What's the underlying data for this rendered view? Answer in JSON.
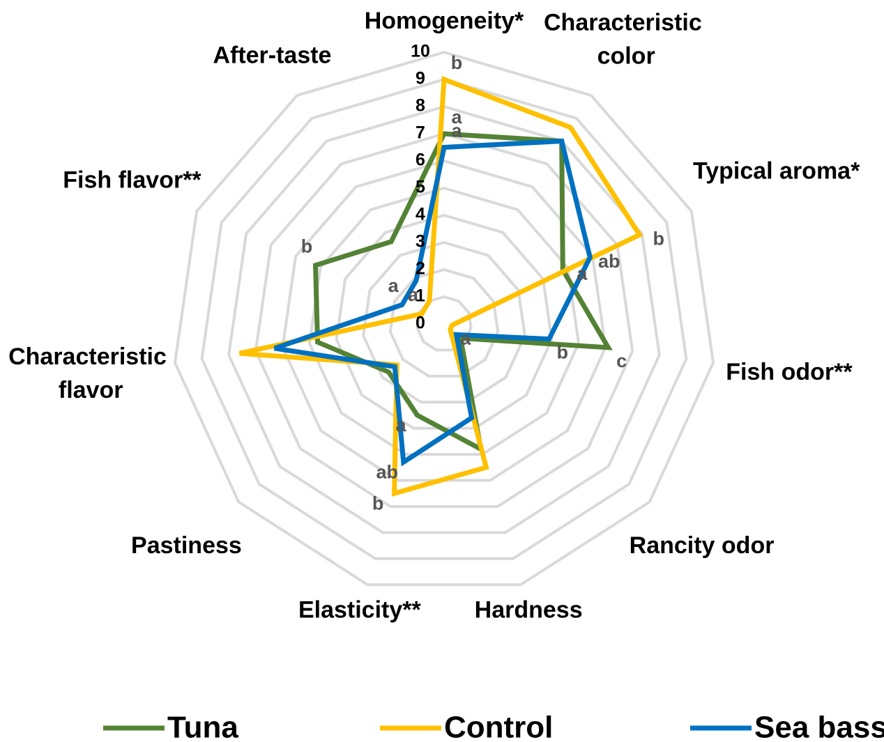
{
  "chart_data": {
    "type": "radar",
    "categories": [
      "Homogeneity*",
      "Characteristic color",
      "Typical aroma*",
      "Fish odor**",
      "Rancity odor",
      "Hardness",
      "Elasticity**",
      "Pastiness",
      "Characteristic flavor",
      "Fish flavor**",
      "After-taste"
    ],
    "rlim": [
      0,
      10
    ],
    "rticks": [
      0,
      1,
      2,
      3,
      4,
      5,
      6,
      7,
      8,
      9,
      10
    ],
    "grid": true,
    "series": [
      {
        "name": "Tuna",
        "color": "#548235",
        "values": [
          7.0,
          8.0,
          4.8,
          6.1,
          0.8,
          4.8,
          3.5,
          2.7,
          4.7,
          5.2,
          3.6
        ],
        "letters": [
          "a",
          null,
          "a",
          "c",
          null,
          null,
          "a",
          null,
          null,
          "b",
          null
        ]
      },
      {
        "name": "Control",
        "color": "#ffc000",
        "values": [
          9.0,
          8.6,
          7.9,
          0.3,
          0.3,
          5.5,
          6.5,
          2.3,
          7.6,
          0.9,
          1.0
        ],
        "letters": [
          "b",
          null,
          "b",
          "a",
          null,
          null,
          "b",
          null,
          null,
          "a",
          null
        ]
      },
      {
        "name": "Sea bass",
        "color": "#0070c0",
        "values": [
          6.5,
          8.0,
          5.9,
          3.9,
          0.6,
          3.6,
          5.3,
          2.4,
          6.3,
          1.7,
          1.9
        ],
        "letters": [
          "a",
          null,
          "ab",
          "b",
          null,
          null,
          "ab",
          null,
          null,
          "a",
          null
        ]
      }
    ],
    "legend": "bottom"
  }
}
